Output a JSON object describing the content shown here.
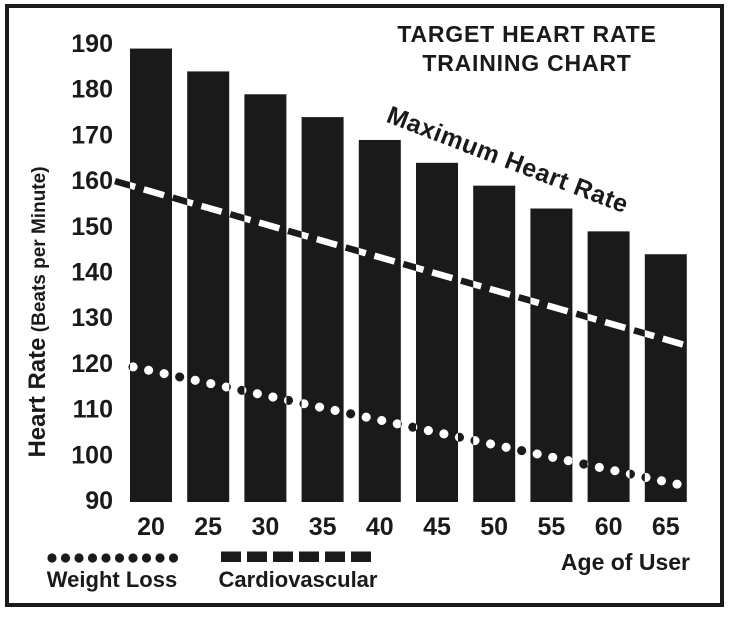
{
  "title": {
    "line1": "TARGET HEART RATE",
    "line2": "TRAINING CHART"
  },
  "y_axis": {
    "label_main": "Heart Rate",
    "label_sub": " (Beats per Minute)",
    "ticks": [
      190,
      180,
      170,
      160,
      150,
      140,
      130,
      120,
      110,
      100,
      90
    ]
  },
  "x_axis": {
    "label": "Age of User",
    "categories": [
      "20",
      "25",
      "30",
      "35",
      "40",
      "45",
      "50",
      "55",
      "60",
      "65"
    ]
  },
  "line_label": "Maximum Heart Rate",
  "legend": {
    "weight_loss": "Weight Loss",
    "cardiovascular": "Cardiovascular"
  },
  "colors": {
    "ink": "#1a1a1a",
    "background": "#ffffff"
  },
  "chart_data": {
    "type": "bar",
    "title": "TARGET HEART RATE TRAINING CHART",
    "categories": [
      20,
      25,
      30,
      35,
      40,
      45,
      50,
      55,
      60,
      65
    ],
    "series": [
      {
        "name": "Maximum Heart Rate",
        "type": "bar",
        "values": [
          189,
          184,
          179,
          174,
          169,
          164,
          159,
          154,
          149,
          144
        ]
      },
      {
        "name": "Cardiovascular",
        "type": "line",
        "style": "dashed",
        "values": [
          160,
          156,
          152,
          148,
          144,
          140,
          136,
          132,
          128,
          124
        ]
      },
      {
        "name": "Weight Loss",
        "type": "line",
        "style": "dotted",
        "values": [
          120,
          117,
          114,
          111,
          108,
          105,
          102,
          99,
          96,
          93
        ]
      }
    ],
    "xlabel": "Age of User",
    "ylabel": "Heart Rate (Beats per Minute)",
    "ylim": [
      88,
      195
    ],
    "yticks": [
      90,
      100,
      110,
      120,
      130,
      140,
      150,
      160,
      170,
      180,
      190
    ],
    "grid": false,
    "legend_position": "bottom"
  }
}
